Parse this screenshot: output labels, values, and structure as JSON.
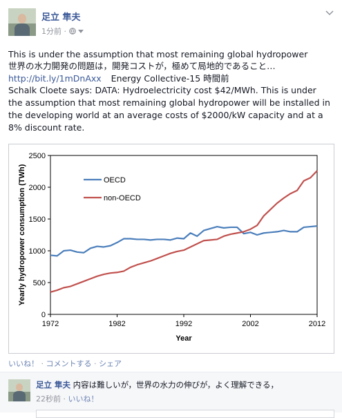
{
  "post": {
    "author": "足立 隼夫",
    "time": "1分前",
    "meta_sep": "·",
    "privacy_icon": "globe-icon",
    "line1": "This is under the assumption that most remaining global hydropower",
    "line2": "世界の水力開発の問題は，開発コストが，極めて局地的であること…",
    "link": "http://bit.ly/1mDnAxx",
    "source": "Energy Collective-15 時間前",
    "body_lines": [
      "Schalk Cloete says: DATA: Hydroelectricity cost $42/MWh. This is under",
      "the assumption that most remaining global hydropower will be installed in",
      "the developing world at an average costs of $2000/kW capacity and at a",
      "8% discount rate."
    ]
  },
  "actions": {
    "like": "いいね！",
    "comment": "コメントする",
    "share": "シェア",
    "sep": " · "
  },
  "comment": {
    "author": "足立 隼夫",
    "text": "内容は難しいが，世界の水力の伸びが，よく理解できる，",
    "time": "22秒前",
    "like": "いいね！"
  },
  "colors": {
    "oecd": "#4a7ebb",
    "non_oecd": "#c0504d",
    "link": "#3b5998"
  },
  "chart_data": {
    "type": "line",
    "xlabel": "Year",
    "ylabel": "Yearly hydropower consumption (TWh)",
    "xlim": [
      1972,
      2012
    ],
    "ylim": [
      0,
      2500
    ],
    "xticks": [
      1972,
      1982,
      1992,
      2002,
      2012
    ],
    "yticks": [
      0,
      500,
      1000,
      1500,
      2000,
      2500
    ],
    "grid": false,
    "legend": "top-left",
    "x": [
      1972,
      1973,
      1974,
      1975,
      1976,
      1977,
      1978,
      1979,
      1980,
      1981,
      1982,
      1983,
      1984,
      1985,
      1986,
      1987,
      1988,
      1989,
      1990,
      1991,
      1992,
      1993,
      1994,
      1995,
      1996,
      1997,
      1998,
      1999,
      2000,
      2001,
      2002,
      2003,
      2004,
      2005,
      2006,
      2007,
      2008,
      2009,
      2010,
      2011,
      2012
    ],
    "series": [
      {
        "name": "OECD",
        "values": [
          930,
          920,
          1000,
          1010,
          980,
          970,
          1040,
          1070,
          1060,
          1080,
          1130,
          1190,
          1190,
          1180,
          1180,
          1170,
          1180,
          1180,
          1170,
          1200,
          1190,
          1280,
          1230,
          1320,
          1350,
          1380,
          1360,
          1370,
          1370,
          1270,
          1290,
          1250,
          1280,
          1290,
          1300,
          1320,
          1300,
          1300,
          1370,
          1380,
          1390
        ]
      },
      {
        "name": "non-OECD",
        "values": [
          350,
          380,
          420,
          440,
          480,
          520,
          560,
          600,
          630,
          650,
          660,
          680,
          740,
          780,
          810,
          840,
          880,
          920,
          960,
          990,
          1010,
          1060,
          1110,
          1160,
          1170,
          1180,
          1230,
          1260,
          1280,
          1300,
          1340,
          1400,
          1550,
          1650,
          1750,
          1830,
          1900,
          1950,
          2100,
          2150,
          2260
        ]
      }
    ]
  }
}
